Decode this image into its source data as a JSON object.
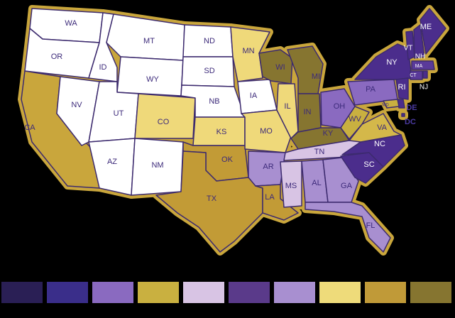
{
  "map": {
    "states": [
      {
        "label": "WA",
        "color": "#ffffff"
      },
      {
        "label": "OR",
        "color": "#ffffff"
      },
      {
        "label": "CA",
        "color": "#c9a63c"
      },
      {
        "label": "NV",
        "color": "#ffffff"
      },
      {
        "label": "ID",
        "color": "#ffffff"
      },
      {
        "label": "MT",
        "color": "#ffffff"
      },
      {
        "label": "WY",
        "color": "#ffffff"
      },
      {
        "label": "UT",
        "color": "#ffffff"
      },
      {
        "label": "CO",
        "color": "#efd97a"
      },
      {
        "label": "AZ",
        "color": "#ffffff"
      },
      {
        "label": "NM",
        "color": "#ffffff"
      },
      {
        "label": "ND",
        "color": "#ffffff"
      },
      {
        "label": "SD",
        "color": "#ffffff"
      },
      {
        "label": "NB",
        "color": "#ffffff"
      },
      {
        "label": "KS",
        "color": "#efd97a"
      },
      {
        "label": "OK",
        "color": "#c29b36"
      },
      {
        "label": "TX",
        "color": "#c29b36"
      },
      {
        "label": "MN",
        "color": "#efd97a"
      },
      {
        "label": "IA",
        "color": "#ffffff"
      },
      {
        "label": "MO",
        "color": "#efd97a"
      },
      {
        "label": "AR",
        "color": "#a88fd0"
      },
      {
        "label": "LA",
        "color": "#c29b36"
      },
      {
        "label": "WI",
        "color": "#867530"
      },
      {
        "label": "IL",
        "color": "#efd97a"
      },
      {
        "label": "MI",
        "color": "#867530"
      },
      {
        "label": "IN",
        "color": "#867530"
      },
      {
        "label": "OH",
        "color": "#8a6ac0"
      },
      {
        "label": "KY",
        "color": "#867530"
      },
      {
        "label": "TN",
        "color": "#d8c4e4"
      },
      {
        "label": "MS",
        "color": "#d8c4e4"
      },
      {
        "label": "AL",
        "color": "#a88fd0"
      },
      {
        "label": "GA",
        "color": "#a88fd0"
      },
      {
        "label": "FL",
        "color": "#a88fd0"
      },
      {
        "label": "SC",
        "color": "#4b2d8c"
      },
      {
        "label": "NC",
        "color": "#4b2d8c"
      },
      {
        "label": "VA",
        "color": "#d4b84a"
      },
      {
        "label": "WV",
        "color": "#c9b040"
      },
      {
        "label": "PA",
        "color": "#8a6ac0"
      },
      {
        "label": "NY",
        "color": "#4b2d8c"
      },
      {
        "label": "VT",
        "color": "#4b2d8c"
      },
      {
        "label": "NH",
        "color": "#4b2d8c"
      },
      {
        "label": "ME",
        "color": "#4b2d8c"
      },
      {
        "label": "MA",
        "color": "#5a3a9a"
      },
      {
        "label": "CT",
        "color": "#5a3a9a"
      },
      {
        "label": "NJ",
        "color": "#4b2d8c"
      },
      {
        "label": "RI",
        "color": "#4b2d8c"
      },
      {
        "label": "DE",
        "color": "#4b2d8c"
      },
      {
        "label": "MD",
        "color": "#c9b040"
      },
      {
        "label": "DC",
        "color": "#4b2d8c"
      }
    ],
    "legend": {
      "colors": [
        "#2a1f55",
        "#3a2e8a",
        "#8a6ac0",
        "#c9b040",
        "#d8c4e4",
        "#5a3a8a",
        "#a88fd0",
        "#eedb7a",
        "#c09a38",
        "#867530"
      ]
    }
  }
}
